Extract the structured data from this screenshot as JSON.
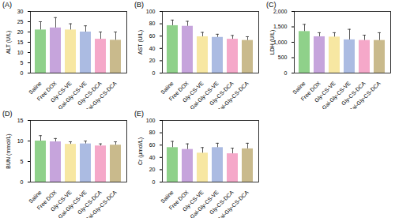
{
  "chart_data": [
    {
      "type": "bar",
      "title": "(A)",
      "ylabel": "ALT (U/L)",
      "categories": [
        "Saline",
        "Free DOX",
        "Gly-CS-VE",
        "Gal-Gly-CS-VE",
        "Gly-CS-DCA",
        "Gal-Gly-CS-DCA"
      ],
      "values": [
        21,
        22,
        21,
        20,
        16.5,
        16
      ],
      "errors": [
        4,
        5,
        3,
        3,
        3.5,
        4
      ],
      "colors": [
        "#8fd18a",
        "#c6a4dc",
        "#f7e7a2",
        "#abbbe2",
        "#f5a8c9",
        "#c9ba8c"
      ],
      "ylim": [
        0,
        30
      ],
      "yticks": [
        0,
        5,
        10,
        15,
        20,
        25,
        30
      ]
    },
    {
      "type": "bar",
      "title": "(B)",
      "ylabel": "AST (U/L)",
      "categories": [
        "Saline",
        "Free DOX",
        "Gly-CS-VE",
        "Gal-Gly-CS-VE",
        "Gly-CS-DCA",
        "Gal-Gly-CS-DCA"
      ],
      "values": [
        77,
        76,
        59,
        58,
        55,
        53
      ],
      "errors": [
        9,
        8,
        7,
        5,
        6,
        6
      ],
      "colors": [
        "#8fd18a",
        "#c6a4dc",
        "#f7e7a2",
        "#abbbe2",
        "#f5a8c9",
        "#c9ba8c"
      ],
      "ylim": [
        0,
        100
      ],
      "yticks": [
        0,
        20,
        40,
        60,
        80,
        100
      ]
    },
    {
      "type": "bar",
      "title": "(C)",
      "ylabel": "LDH (U/L)",
      "categories": [
        "Saline",
        "Free DOX",
        "Gly-CS-VE",
        "Gal-Gly-CS-VE",
        "Gly-CS-DCA",
        "Gal-Gly-CS-DCA"
      ],
      "values": [
        1350,
        1180,
        1170,
        1080,
        1060,
        1060
      ],
      "errors": [
        230,
        130,
        140,
        340,
        170,
        250
      ],
      "colors": [
        "#8fd18a",
        "#c6a4dc",
        "#f7e7a2",
        "#abbbe2",
        "#f5a8c9",
        "#c9ba8c"
      ],
      "ylim": [
        0,
        2000
      ],
      "yticks": [
        0,
        500,
        1000,
        1500,
        2000
      ]
    },
    {
      "type": "bar",
      "title": "(D)",
      "ylabel": "BUN (mmol/L)",
      "categories": [
        "Saline",
        "Free DOX",
        "Gly-CS-VE",
        "Gal-Gly-CS-VE",
        "Gly-CS-DCA",
        "Gal-Gly-CS-DCA"
      ],
      "values": [
        10,
        9.8,
        9.2,
        9.3,
        8.8,
        9.0
      ],
      "errors": [
        1.3,
        0.8,
        0.6,
        0.7,
        0.5,
        0.8
      ],
      "colors": [
        "#8fd18a",
        "#c6a4dc",
        "#f7e7a2",
        "#abbbe2",
        "#f5a8c9",
        "#c9ba8c"
      ],
      "ylim": [
        0,
        15
      ],
      "yticks": [
        0,
        5,
        10,
        15
      ]
    },
    {
      "type": "bar",
      "title": "(E)",
      "ylabel": "Cr (μmol/L)",
      "categories": [
        "Saline",
        "Free DOX",
        "Gly-CS-VE",
        "Gal-Gly-CS-VE",
        "Gly-CS-DCA",
        "Gal-Gly-CS-DCA"
      ],
      "values": [
        56,
        53,
        47,
        56,
        46,
        54
      ],
      "errors": [
        10,
        9,
        9,
        7,
        9,
        9
      ],
      "colors": [
        "#8fd18a",
        "#c6a4dc",
        "#f7e7a2",
        "#abbbe2",
        "#f5a8c9",
        "#c9ba8c"
      ],
      "ylim": [
        0,
        100
      ],
      "yticks": [
        0,
        20,
        40,
        60,
        80,
        100
      ]
    }
  ]
}
